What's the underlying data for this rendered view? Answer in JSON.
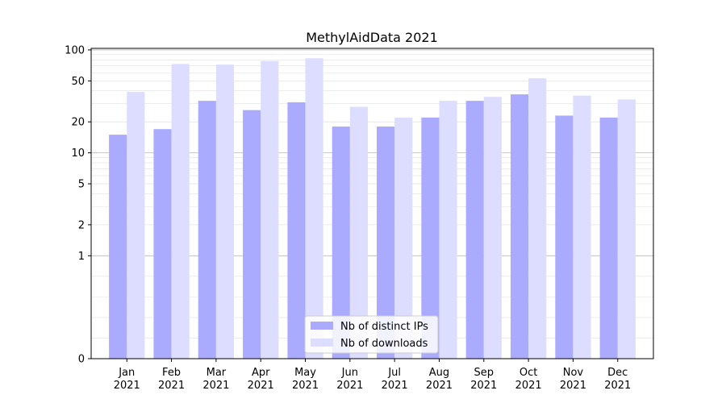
{
  "chart_data": {
    "type": "bar",
    "title": "MethylAidData 2021",
    "scale": "symlog",
    "categories": [
      "Jan\n2021",
      "Feb\n2021",
      "Mar\n2021",
      "Apr\n2021",
      "May\n2021",
      "Jun\n2021",
      "Jul\n2021",
      "Aug\n2021",
      "Sep\n2021",
      "Oct\n2021",
      "Nov\n2021",
      "Dec\n2021"
    ],
    "series": [
      {
        "name": "Nb of distinct IPs",
        "color": "#aaaaff",
        "values": [
          15,
          17,
          32,
          26,
          31,
          18,
          18,
          22,
          32,
          37,
          23,
          22
        ]
      },
      {
        "name": "Nb of downloads",
        "color": "#ddddff",
        "values": [
          39,
          73,
          72,
          78,
          83,
          28,
          22,
          32,
          35,
          53,
          36,
          33
        ]
      }
    ],
    "yticks": [
      0,
      1,
      2,
      5,
      10,
      20,
      50,
      100
    ],
    "ytick_labels": [
      "0",
      "1",
      "2",
      "5",
      "10",
      "20",
      "50",
      "100"
    ],
    "ylim": [
      0,
      100
    ],
    "grid": true,
    "legend_position": "bottom-center"
  }
}
